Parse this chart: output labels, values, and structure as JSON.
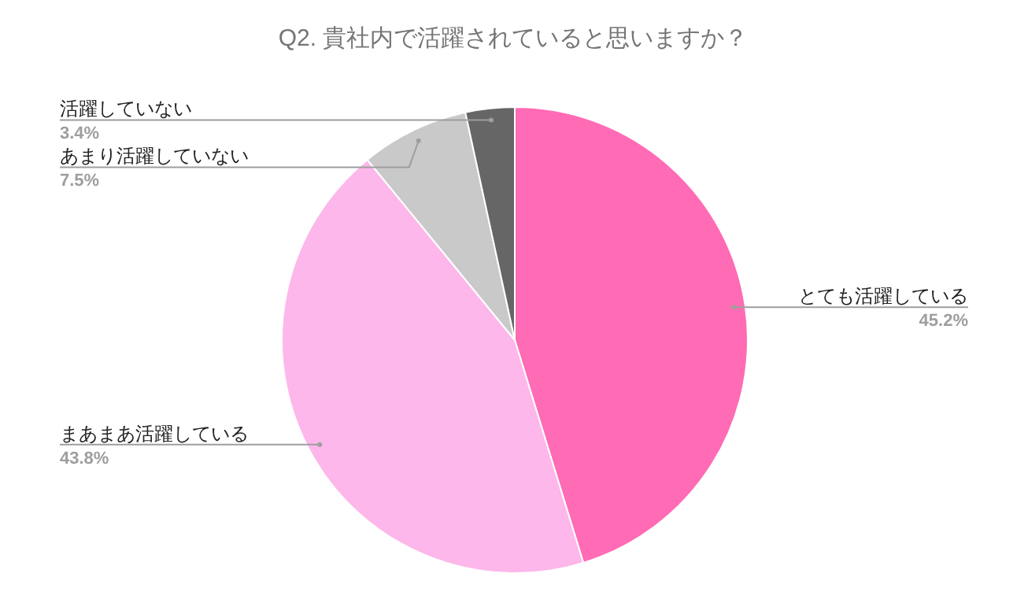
{
  "chart_data": {
    "type": "pie",
    "title": "Q2.  貴社内で活躍されていると思いますか？",
    "categories": [
      "とても活躍している",
      "まあまあ活躍している",
      "あまり活躍していない",
      "活躍していない"
    ],
    "values": [
      45.2,
      43.8,
      7.5,
      3.4
    ],
    "value_labels": [
      "45.2%",
      "43.8%",
      "7.5%",
      "3.4%"
    ],
    "colors": [
      "#ff6bb5",
      "#fdb7ea",
      "#c9c9c9",
      "#666666"
    ]
  }
}
